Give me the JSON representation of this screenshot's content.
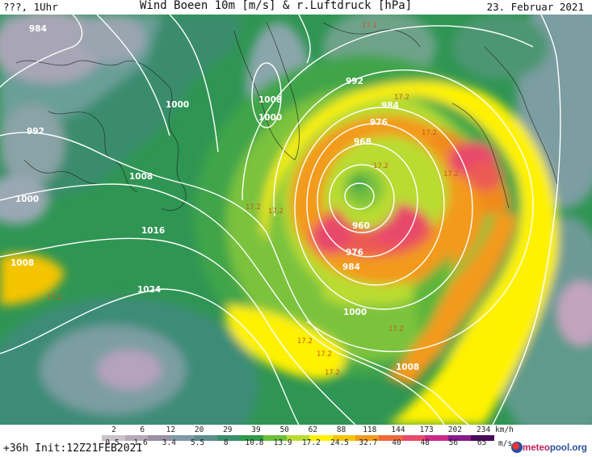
{
  "header": {
    "left": "???, 1Uhr",
    "title": "Wind Boeen 10m [m/s] & r.Luftdruck [hPa]",
    "date": "23. Februar 2021"
  },
  "footer": {
    "run": "+36h Init:12Z21FEB2021",
    "kmh_unit": "km/h",
    "ms_unit": "m/s",
    "brand_a": "meteo",
    "brand_b": "pool.org"
  },
  "legend": {
    "kmh": [
      "2",
      "6",
      "12",
      "20",
      "29",
      "39",
      "50",
      "62",
      "88",
      "118",
      "144",
      "173",
      "202",
      "234"
    ],
    "ms": [
      "0.5",
      "1.6",
      "3.4",
      "5.5",
      "8",
      "10.8",
      "13.9",
      "17.2",
      "24.5",
      "32.7",
      "40",
      "48",
      "56",
      "65"
    ],
    "colors": [
      "#c9c3c9",
      "#b7a8b8",
      "#9a8fa3",
      "#7f9aa6",
      "#5c8e8c",
      "#3b8f6c",
      "#2e9a4a",
      "#6bbf3a",
      "#b8dc33",
      "#fff200",
      "#f5c400",
      "#f39a1a",
      "#ee6a3a",
      "#e84a6a",
      "#cc2a8a",
      "#8a1a8a",
      "#4a0a5a"
    ]
  },
  "isobars": [
    "984",
    "992",
    "1000",
    "1008",
    "1000",
    "992",
    "1000",
    "1008",
    "1016",
    "1024",
    "1008",
    "1000",
    "984",
    "976",
    "968",
    "960",
    "976",
    "984",
    "1000",
    "1008"
  ],
  "gust_labels": [
    "17.2",
    "17.2",
    "17.2",
    "17.2",
    "17.2",
    "17.2",
    "17.2",
    "17.2",
    "17.2",
    "17.2",
    "17.2",
    "17.2"
  ]
}
